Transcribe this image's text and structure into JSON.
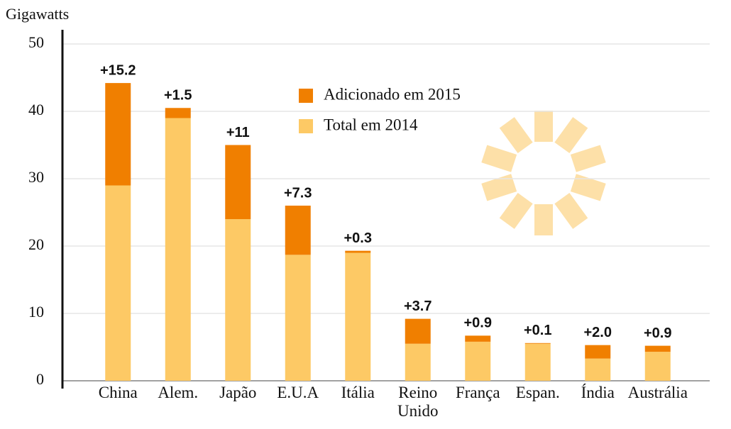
{
  "chart_data": {
    "type": "stacked_bar",
    "y_axis_label": "Gigawatts",
    "categories": [
      "China",
      "Alem.",
      "Japão",
      "E.U.A",
      "Itália",
      "Reino Unido",
      "França",
      "Espan.",
      "Índia",
      "Austrália"
    ],
    "series": [
      {
        "name": "Total em 2014",
        "color": "#fdc965",
        "values": [
          29,
          39,
          24,
          18.7,
          19,
          5.5,
          5.8,
          5.5,
          3.3,
          4.3
        ]
      },
      {
        "name": "Adicionado em 2015",
        "color": "#f07f00",
        "values": [
          15.2,
          1.5,
          11,
          7.3,
          0.3,
          3.7,
          0.9,
          0.1,
          2.0,
          0.9
        ],
        "value_labels": [
          "+15.2",
          "+1.5",
          "+11",
          "+7.3",
          "+0.3",
          "+3.7",
          "+0.9",
          "+0.1",
          "+2.0",
          "+0.9"
        ]
      }
    ],
    "legend_order": [
      1,
      0
    ],
    "ylim": [
      0,
      50
    ],
    "yticks": [
      0,
      10,
      20,
      30,
      40,
      50
    ],
    "grid": true
  }
}
